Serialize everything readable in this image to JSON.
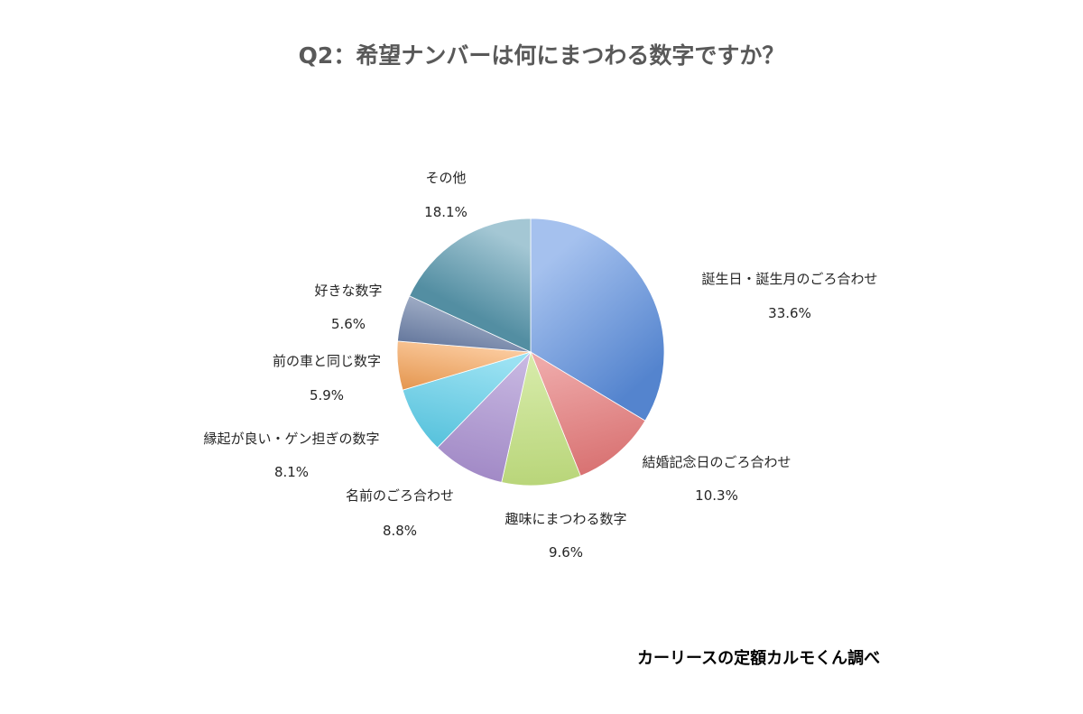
{
  "chart_data": {
    "type": "pie",
    "title": "Q2：希望ナンバーは何にまつわる数字ですか？",
    "start_angle_deg": 0,
    "direction": "clockwise",
    "slices": [
      {
        "label": "誕生日・誕生月のごろ合わせ",
        "value": 33.6,
        "value_label": "33.6%",
        "color": "#5b8fe0"
      },
      {
        "label": "結婚記念日のごろ合わせ",
        "value": 10.3,
        "value_label": "10.3%",
        "color": "#e06060"
      },
      {
        "label": "趣味にまつわる数字",
        "value": 9.6,
        "value_label": "9.6%",
        "color": "#b8dc68"
      },
      {
        "label": "名前のごろ合わせ",
        "value": 8.8,
        "value_label": "8.8%",
        "color": "#9a7cc8"
      },
      {
        "label": "縁起が良い・ゲン担ぎの数字",
        "value": 8.1,
        "value_label": "8.1%",
        "color": "#48c8e8"
      },
      {
        "label": "前の車と同じ数字",
        "value": 5.9,
        "value_label": "5.9%",
        "color": "#f7a050"
      },
      {
        "label": "好きな数字",
        "value": 5.6,
        "value_label": "5.6%",
        "color": "#6a7fa8"
      },
      {
        "label": "その他",
        "value": 18.1,
        "value_label": "18.1%",
        "color": "#5a9ab0"
      }
    ]
  },
  "source": "カーリースの定額カルモくん調べ"
}
